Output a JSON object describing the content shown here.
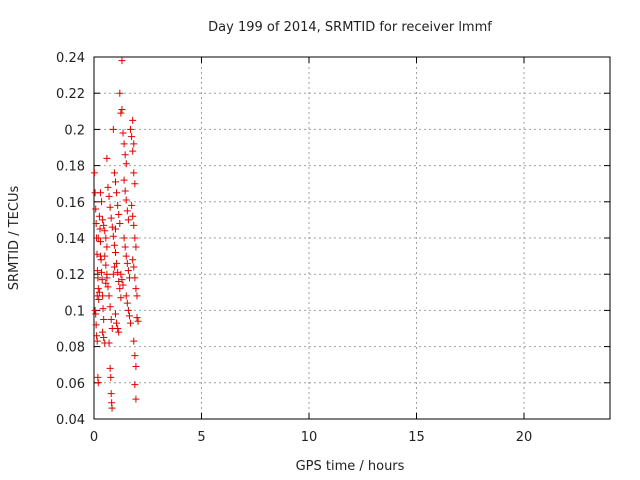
{
  "chart_data": {
    "type": "scatter",
    "title": "Day 199 of 2014, SRMTID for receiver lmmf",
    "xlabel": "GPS time / hours",
    "ylabel": "SRMTID / TECUs",
    "xlim": [
      0,
      24
    ],
    "ylim": [
      0.04,
      0.24
    ],
    "xticks": [
      "0",
      "5",
      "10",
      "15",
      "20"
    ],
    "yticks": [
      "0.04",
      "0.06",
      "0.08",
      "0.1",
      "0.12",
      "0.14",
      "0.16",
      "0.18",
      "0.2",
      "0.22",
      "0.24"
    ],
    "grid": true,
    "marker": "+",
    "series": [
      {
        "color": "#e00000",
        "points": [
          [
            0.02,
            0.176
          ],
          [
            0.05,
            0.165
          ],
          [
            0.08,
            0.156
          ],
          [
            0.1,
            0.148
          ],
          [
            0.12,
            0.14
          ],
          [
            0.14,
            0.131
          ],
          [
            0.16,
            0.122
          ],
          [
            0.18,
            0.118
          ],
          [
            0.2,
            0.112
          ],
          [
            0.22,
            0.106
          ],
          [
            0.05,
            0.1
          ],
          [
            0.08,
            0.098
          ],
          [
            0.1,
            0.092
          ],
          [
            0.12,
            0.086
          ],
          [
            0.15,
            0.083
          ],
          [
            0.18,
            0.063
          ],
          [
            0.2,
            0.06
          ],
          [
            0.25,
            0.152
          ],
          [
            0.28,
            0.145
          ],
          [
            0.3,
            0.138
          ],
          [
            0.33,
            0.128
          ],
          [
            0.35,
            0.121
          ],
          [
            0.38,
            0.117
          ],
          [
            0.4,
            0.108
          ],
          [
            0.42,
            0.101
          ],
          [
            0.45,
            0.095
          ],
          [
            0.3,
            0.165
          ],
          [
            0.35,
            0.16
          ],
          [
            0.4,
            0.15
          ],
          [
            0.45,
            0.147
          ],
          [
            0.5,
            0.144
          ],
          [
            0.55,
            0.14
          ],
          [
            0.6,
            0.135
          ],
          [
            0.5,
            0.13
          ],
          [
            0.55,
            0.125
          ],
          [
            0.6,
            0.12
          ],
          [
            0.65,
            0.113
          ],
          [
            0.7,
            0.108
          ],
          [
            0.75,
            0.102
          ],
          [
            0.8,
            0.095
          ],
          [
            0.85,
            0.09
          ],
          [
            0.6,
            0.184
          ],
          [
            0.65,
            0.168
          ],
          [
            0.7,
            0.163
          ],
          [
            0.75,
            0.157
          ],
          [
            0.8,
            0.151
          ],
          [
            0.85,
            0.146
          ],
          [
            0.9,
            0.141
          ],
          [
            0.95,
            0.136
          ],
          [
            0.7,
            0.082
          ],
          [
            0.75,
            0.068
          ],
          [
            0.78,
            0.063
          ],
          [
            0.8,
            0.054
          ],
          [
            0.82,
            0.049
          ],
          [
            0.84,
            0.046
          ],
          [
            0.9,
            0.2
          ],
          [
            0.95,
            0.176
          ],
          [
            1.0,
            0.171
          ],
          [
            1.05,
            0.165
          ],
          [
            1.1,
            0.158
          ],
          [
            1.15,
            0.153
          ],
          [
            1.2,
            0.148
          ],
          [
            1.0,
            0.132
          ],
          [
            1.05,
            0.126
          ],
          [
            1.1,
            0.121
          ],
          [
            1.15,
            0.116
          ],
          [
            1.2,
            0.112
          ],
          [
            1.25,
            0.107
          ],
          [
            1.0,
            0.098
          ],
          [
            1.05,
            0.093
          ],
          [
            1.1,
            0.09
          ],
          [
            1.15,
            0.088
          ],
          [
            1.2,
            0.22
          ],
          [
            1.25,
            0.209
          ],
          [
            1.3,
            0.211
          ],
          [
            1.35,
            0.198
          ],
          [
            1.3,
            0.238
          ],
          [
            1.4,
            0.192
          ],
          [
            1.45,
            0.186
          ],
          [
            1.5,
            0.181
          ],
          [
            1.4,
            0.172
          ],
          [
            1.45,
            0.166
          ],
          [
            1.5,
            0.161
          ],
          [
            1.55,
            0.155
          ],
          [
            1.6,
            0.15
          ],
          [
            1.4,
            0.14
          ],
          [
            1.45,
            0.135
          ],
          [
            1.5,
            0.13
          ],
          [
            1.55,
            0.126
          ],
          [
            1.6,
            0.122
          ],
          [
            1.65,
            0.118
          ],
          [
            1.5,
            0.108
          ],
          [
            1.55,
            0.104
          ],
          [
            1.6,
            0.1
          ],
          [
            1.65,
            0.097
          ],
          [
            1.7,
            0.093
          ],
          [
            1.7,
            0.2
          ],
          [
            1.75,
            0.196
          ],
          [
            1.8,
            0.188
          ],
          [
            1.85,
            0.176
          ],
          [
            1.9,
            0.17
          ],
          [
            1.75,
            0.158
          ],
          [
            1.8,
            0.152
          ],
          [
            1.85,
            0.147
          ],
          [
            1.9,
            0.14
          ],
          [
            1.95,
            0.135
          ],
          [
            1.8,
            0.128
          ],
          [
            1.85,
            0.124
          ],
          [
            1.9,
            0.118
          ],
          [
            1.95,
            0.112
          ],
          [
            2.0,
            0.108
          ],
          [
            1.85,
            0.083
          ],
          [
            1.9,
            0.075
          ],
          [
            1.95,
            0.069
          ],
          [
            1.9,
            0.059
          ],
          [
            1.95,
            0.051
          ],
          [
            2.0,
            0.096
          ],
          [
            2.05,
            0.094
          ],
          [
            1.8,
            0.205
          ],
          [
            1.85,
            0.192
          ],
          [
            1.25,
            0.12
          ],
          [
            1.3,
            0.117
          ],
          [
            1.35,
            0.114
          ],
          [
            0.4,
            0.088
          ],
          [
            0.45,
            0.085
          ],
          [
            0.5,
            0.082
          ],
          [
            0.55,
            0.115
          ],
          [
            0.6,
            0.118
          ],
          [
            0.15,
            0.108
          ],
          [
            0.25,
            0.11
          ],
          [
            0.9,
            0.12
          ],
          [
            0.95,
            0.124
          ],
          [
            1.0,
            0.145
          ],
          [
            0.3,
            0.13
          ],
          [
            0.2,
            0.14
          ]
        ]
      }
    ]
  }
}
